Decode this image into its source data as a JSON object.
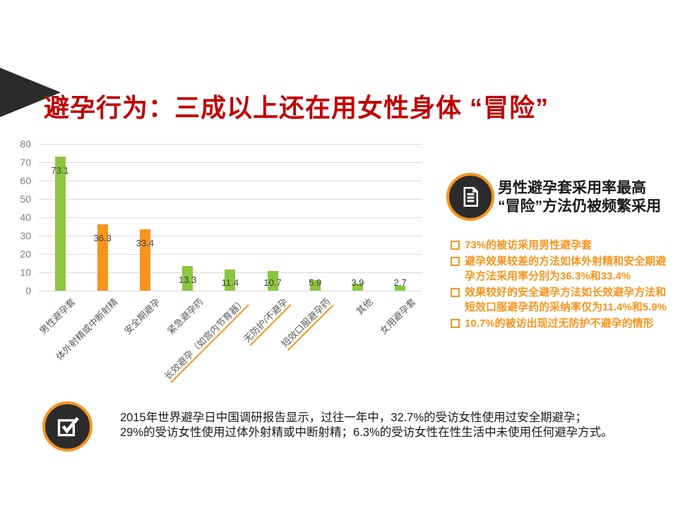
{
  "title": {
    "text": "避孕行为：三成以上还在用女性身体 “冒险”"
  },
  "chart_data": {
    "type": "bar",
    "categories": [
      "男性避孕套",
      "体外射精或中断射精",
      "安全期避孕",
      "紧急避孕药",
      "长效避孕（如宫内节育器）",
      "无防护/不避孕",
      "短效口服避孕药",
      "其他",
      "女用避孕套"
    ],
    "values": [
      73.1,
      36.3,
      33.4,
      13.3,
      11.4,
      10.7,
      5.9,
      3.9,
      2.7
    ],
    "value_labels": [
      "73.1",
      "36.3",
      "33.4",
      "13.3",
      "11.4",
      "10.7",
      "5.9",
      "3.9",
      "2.7"
    ],
    "bar_colors": [
      "green",
      "orange",
      "orange",
      "green",
      "green",
      "green",
      "green",
      "green",
      "green"
    ],
    "palette": {
      "green": "#8cc63f",
      "orange": "#f7941e"
    },
    "underlined_categories": [
      4,
      5,
      6
    ],
    "underline_color": "#f7941e",
    "title": "",
    "xlabel": "",
    "ylabel": "",
    "ylim": [
      0,
      80
    ],
    "yticks": [
      0,
      10,
      20,
      30,
      40,
      50,
      60,
      70,
      80
    ],
    "grid": true,
    "legend": "none"
  },
  "right_panel": {
    "icon": "document-icon",
    "heading_line1": "男性避孕套采用率最高",
    "heading_line2": "“冒险”方法仍被频繁采用",
    "bullets": [
      "73%的被访采用男性避孕套",
      "避孕效果较差的方法如体外射精和安全期避孕方法采用率分别为36.3%和33.4%",
      "效果较好的安全避孕方法如长效避孕方法和短效口服避孕药的采纳率仅为11.4%和5.9%",
      "10.7%的被访出现过无防护不避孕的情形"
    ]
  },
  "footnote": {
    "icon": "checkbox-icon",
    "line1": "2015年世界避孕日中国调研报告显示，过往一年中，32.7%的受访女性使用过安全期避孕；",
    "line2": "29%的受访女性使用过体外射精或中断射精；6.3%的受访女性在性生活中未使用任何避孕方式。"
  },
  "colors": {
    "title_red": "#c00000",
    "accent_orange": "#f7941e",
    "bar_green": "#8cc63f",
    "icon_black": "#2b2b2b",
    "grid_gray": "#d9d9d9"
  }
}
